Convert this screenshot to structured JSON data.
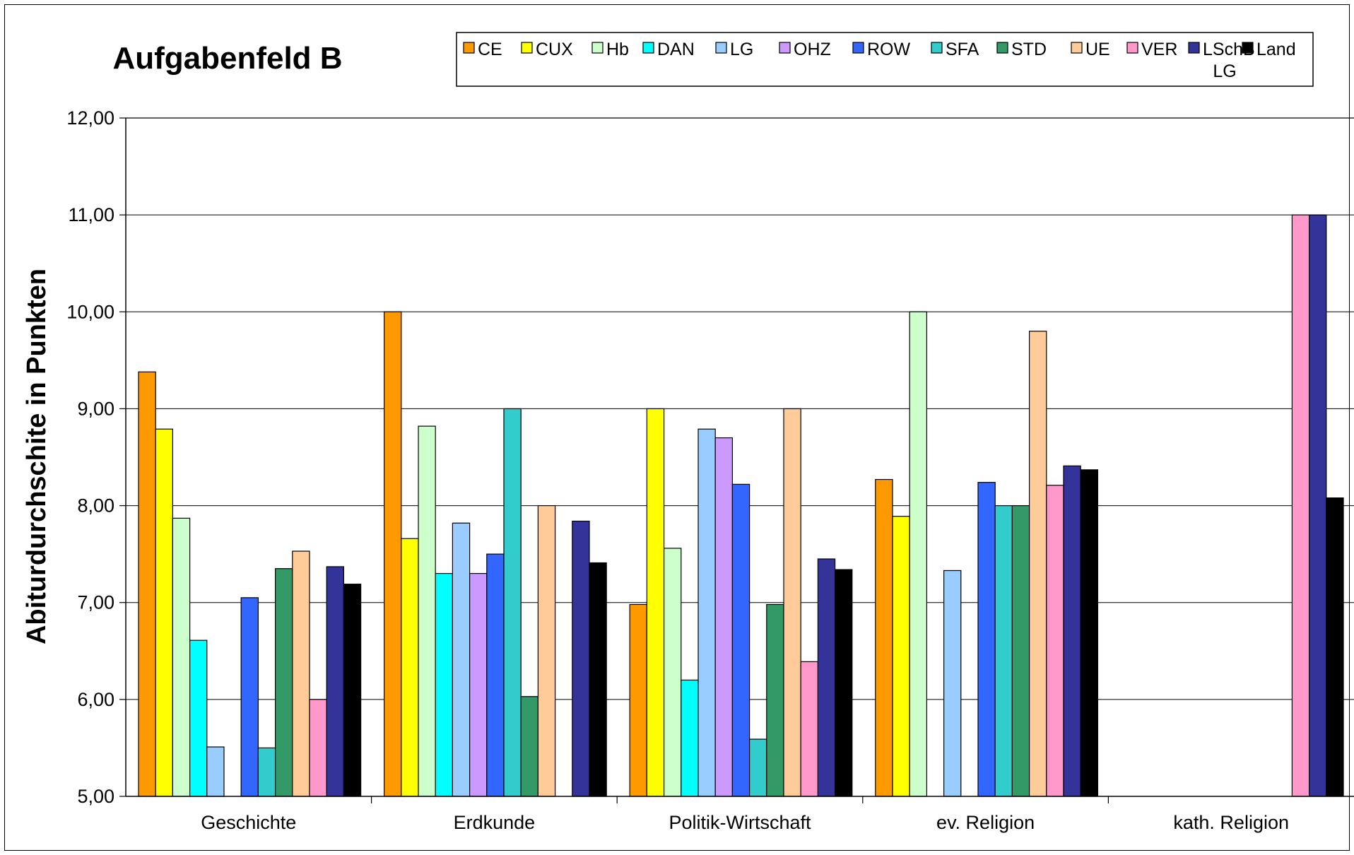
{
  "chart_data": {
    "type": "bar",
    "title": "Aufgabenfeld B",
    "ylabel": "Abiturdurchschite in Punkten",
    "xlabel": "",
    "ylim": [
      5,
      12
    ],
    "yticks": [
      "5,00",
      "6,00",
      "7,00",
      "8,00",
      "9,00",
      "10,00",
      "11,00",
      "12,00"
    ],
    "grid": true,
    "legend_position": "top-right",
    "categories": [
      "Geschichte",
      "Erdkunde",
      "Politik-Wirtschaft",
      "ev. Religion",
      "kath. Religion"
    ],
    "series": [
      {
        "name": "CE",
        "color": "#FF9900",
        "values": [
          9.38,
          10.0,
          6.98,
          8.27,
          null
        ]
      },
      {
        "name": "CUX",
        "color": "#FFFF00",
        "values": [
          8.79,
          7.66,
          9.0,
          7.89,
          null
        ]
      },
      {
        "name": "Hb",
        "color": "#CCFFCC",
        "values": [
          7.87,
          8.82,
          7.56,
          10.0,
          null
        ]
      },
      {
        "name": "DAN",
        "color": "#00FFFF",
        "values": [
          6.61,
          7.3,
          6.2,
          null,
          null
        ]
      },
      {
        "name": "LG",
        "color": "#99CCFF",
        "values": [
          5.51,
          7.82,
          8.79,
          7.33,
          null
        ]
      },
      {
        "name": "OHZ",
        "color": "#CC99FF",
        "values": [
          null,
          7.3,
          8.7,
          null,
          null
        ]
      },
      {
        "name": "ROW",
        "color": "#3366FF",
        "values": [
          7.05,
          7.5,
          8.22,
          8.24,
          null
        ]
      },
      {
        "name": "SFA",
        "color": "#33CCCC",
        "values": [
          5.5,
          9.0,
          5.59,
          8.0,
          null
        ]
      },
      {
        "name": "STD",
        "color": "#339966",
        "values": [
          7.35,
          6.03,
          6.98,
          8.0,
          null
        ]
      },
      {
        "name": "UE",
        "color": "#FFCC99",
        "values": [
          7.53,
          8.0,
          9.0,
          9.8,
          null
        ]
      },
      {
        "name": "VER",
        "color": "#FF99CC",
        "values": [
          6.0,
          null,
          6.39,
          8.21,
          11.0
        ]
      },
      {
        "name": "LSchB LG",
        "color": "#333399",
        "values": [
          7.37,
          7.84,
          7.45,
          8.41,
          11.0
        ]
      },
      {
        "name": "Land",
        "color": "#000000",
        "values": [
          7.19,
          7.41,
          7.34,
          8.37,
          8.08
        ]
      }
    ]
  }
}
